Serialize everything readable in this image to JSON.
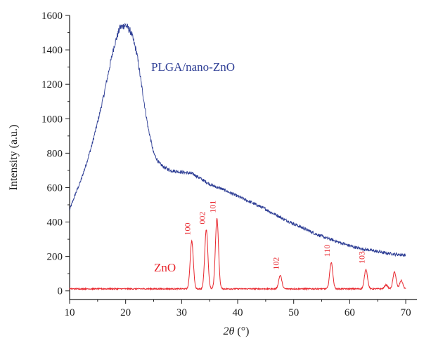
{
  "chart_data": {
    "type": "line",
    "title": "",
    "xlabel_italic": "2θ",
    "xlabel_unit": " (°)",
    "ylabel": "Intensity (a.u.)",
    "xlim": [
      10,
      72
    ],
    "ylim": [
      -50,
      1600
    ],
    "x_ticks": [
      10,
      20,
      30,
      40,
      50,
      60,
      70
    ],
    "y_ticks": [
      0,
      200,
      400,
      600,
      800,
      1000,
      1200,
      1400,
      1600
    ],
    "grid": false,
    "colors": {
      "plga": "#2e3e95",
      "zno": "#e8262d",
      "axis": "#1a1a1a"
    },
    "series": [
      {
        "name": "PLGA/nano-ZnO",
        "color": "#2e3e95",
        "x": [
          10,
          11,
          12,
          13,
          14,
          15,
          16,
          17,
          18,
          19,
          20,
          21,
          22,
          23,
          24,
          25,
          26,
          27,
          28,
          29,
          30,
          31,
          32,
          33,
          34,
          35,
          36,
          37,
          38,
          39,
          40,
          41,
          42,
          43,
          44,
          45,
          46,
          47,
          48,
          49,
          50,
          51,
          52,
          53,
          54,
          55,
          56,
          57,
          58,
          59,
          60,
          61,
          62,
          63,
          64,
          65,
          66,
          67,
          68,
          69,
          70
        ],
        "y": [
          470,
          560,
          640,
          740,
          850,
          980,
          1120,
          1280,
          1430,
          1530,
          1545,
          1500,
          1380,
          1160,
          950,
          800,
          740,
          715,
          700,
          695,
          690,
          685,
          680,
          660,
          640,
          620,
          605,
          595,
          580,
          565,
          550,
          535,
          520,
          505,
          490,
          475,
          455,
          440,
          420,
          405,
          390,
          375,
          360,
          345,
          330,
          318,
          305,
          295,
          283,
          273,
          262,
          253,
          245,
          240,
          235,
          228,
          222,
          218,
          213,
          210,
          208
        ]
      },
      {
        "name": "ZnO",
        "color": "#e8262d",
        "baseline": 12,
        "x_start": 10,
        "x_end": 70,
        "peaks": [
          {
            "x": 31.8,
            "y": 290,
            "label": "100"
          },
          {
            "x": 34.4,
            "y": 355,
            "label": "002"
          },
          {
            "x": 36.3,
            "y": 420,
            "label": "101"
          },
          {
            "x": 47.6,
            "y": 90,
            "label": "102"
          },
          {
            "x": 56.7,
            "y": 165,
            "label": "110"
          },
          {
            "x": 62.9,
            "y": 125,
            "label": "103"
          },
          {
            "x": 66.5,
            "y": 35,
            "label": ""
          },
          {
            "x": 68.0,
            "y": 110,
            "label": ""
          },
          {
            "x": 69.2,
            "y": 60,
            "label": ""
          }
        ]
      }
    ]
  }
}
